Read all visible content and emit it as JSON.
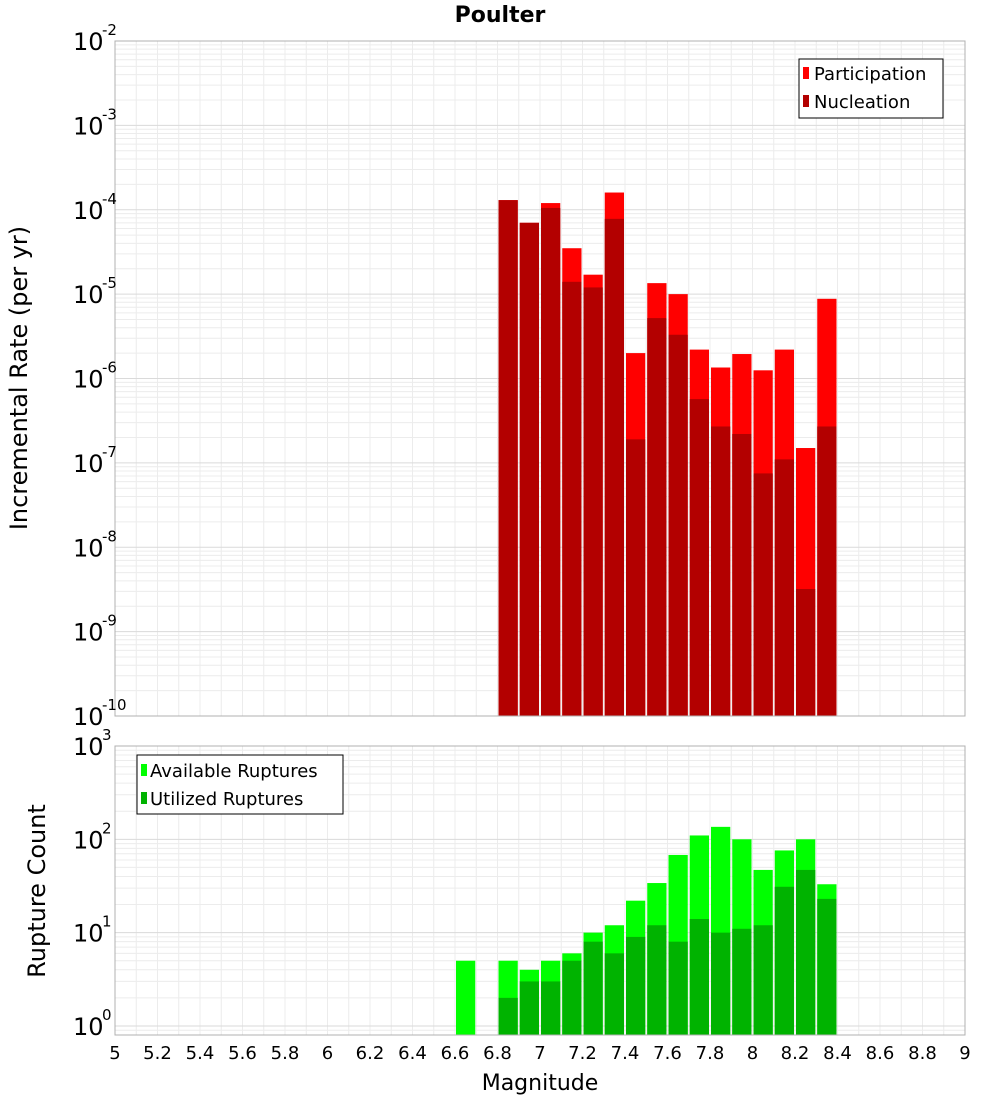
{
  "chart_data": [
    {
      "type": "bar",
      "title": "Poulter",
      "xlabel": "",
      "ylabel": "Incremental Rate (per yr)",
      "xlim": [
        5,
        9
      ],
      "ylim": [
        1e-10,
        0.01
      ],
      "yscale": "log",
      "grid": true,
      "legend_position": "top-right",
      "overlay": true,
      "x": [
        6.85,
        6.95,
        7.05,
        7.15,
        7.25,
        7.35,
        7.45,
        7.55,
        7.65,
        7.75,
        7.85,
        7.95,
        8.05,
        8.15,
        8.25,
        8.35
      ],
      "series": [
        {
          "name": "Participation",
          "color": "#ff0000",
          "values": [
            0.00013,
            7e-05,
            0.00012,
            3.5e-05,
            1.7e-05,
            0.00016,
            2e-06,
            1.35e-05,
            1e-05,
            2.2e-06,
            1.35e-06,
            1.95e-06,
            1.25e-06,
            2.2e-06,
            1.5e-07,
            8.8e-06
          ]
        },
        {
          "name": "Nucleation",
          "color": "#b30000",
          "values": [
            0.00013,
            7e-05,
            0.000105,
            1.4e-05,
            1.2e-05,
            7.8e-05,
            1.9e-07,
            5.2e-06,
            3.3e-06,
            5.7e-07,
            2.7e-07,
            2.2e-07,
            7.5e-08,
            1.1e-07,
            3.2e-09,
            2.7e-07
          ]
        }
      ],
      "y_tick_labels": [
        {
          "base": "10",
          "exp": "-10"
        },
        {
          "base": "10",
          "exp": "-9"
        },
        {
          "base": "10",
          "exp": "-8"
        },
        {
          "base": "10",
          "exp": "-7"
        },
        {
          "base": "10",
          "exp": "-6"
        },
        {
          "base": "10",
          "exp": "-5"
        },
        {
          "base": "10",
          "exp": "-4"
        },
        {
          "base": "10",
          "exp": "-3"
        },
        {
          "base": "10",
          "exp": "-2"
        }
      ]
    },
    {
      "type": "bar",
      "title": "",
      "xlabel": "Magnitude",
      "ylabel": "Rupture Count",
      "xlim": [
        5,
        9
      ],
      "ylim": [
        0.8,
        1000
      ],
      "yscale": "log",
      "grid": true,
      "legend_position": "top-left",
      "overlay": true,
      "x": [
        6.65,
        6.75,
        6.85,
        6.95,
        7.05,
        7.15,
        7.25,
        7.35,
        7.45,
        7.55,
        7.65,
        7.75,
        7.85,
        7.95,
        8.05,
        8.15,
        8.25,
        8.35
      ],
      "series": [
        {
          "name": "Available Ruptures",
          "color": "#00ff00",
          "values": [
            5,
            0,
            5,
            4,
            5,
            6,
            10,
            12,
            22,
            34,
            68,
            110,
            136,
            100,
            47,
            76,
            100,
            33
          ]
        },
        {
          "name": "Utilized Ruptures",
          "color": "#00b300",
          "values": [
            0,
            0,
            2,
            3,
            3,
            5,
            8,
            6,
            9,
            12,
            8,
            14,
            10,
            11,
            12,
            31,
            47,
            23
          ]
        }
      ],
      "y_tick_labels": [
        {
          "base": "10",
          "exp": "0"
        },
        {
          "base": "10",
          "exp": "1"
        },
        {
          "base": "10",
          "exp": "2"
        },
        {
          "base": "10",
          "exp": "3"
        }
      ],
      "x_tick_labels": [
        "5",
        "5.2",
        "5.4",
        "5.6",
        "5.8",
        "6",
        "6.2",
        "6.4",
        "6.6",
        "6.8",
        "7",
        "7.2",
        "7.4",
        "7.6",
        "7.8",
        "8",
        "8.2",
        "8.4",
        "8.6",
        "8.8",
        "9"
      ],
      "x_ticks": [
        5,
        5.2,
        5.4,
        5.6,
        5.8,
        6,
        6.2,
        6.4,
        6.6,
        6.8,
        7,
        7.2,
        7.4,
        7.6,
        7.8,
        8,
        8.2,
        8.4,
        8.6,
        8.8,
        9
      ]
    }
  ]
}
